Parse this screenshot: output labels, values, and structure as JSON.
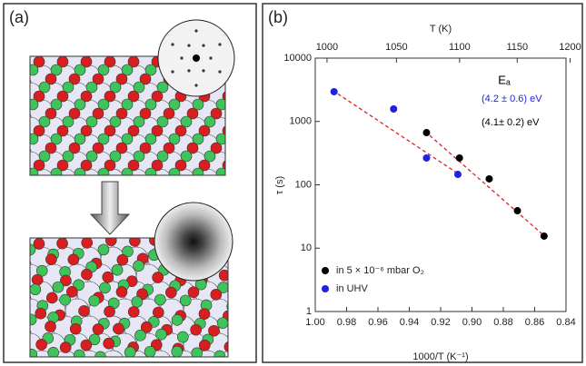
{
  "panel_a": {
    "label": "(a)"
  },
  "chart_data": {
    "type": "scatter",
    "panel_label": "(b)",
    "x_label": "1000/T (K⁻¹)",
    "y_label": "τ (s)",
    "x2_label": "T (K)",
    "xlim": [
      1.0,
      0.84
    ],
    "xticks": [
      {
        "value": 1.0,
        "label": "1.00"
      },
      0.98,
      0.96,
      0.94,
      0.92,
      {
        "value": 0.9,
        "label": "0.90"
      },
      0.88,
      0.86,
      0.84
    ],
    "ylim": [
      1,
      10000
    ],
    "yscale": "log",
    "yticks": [
      1,
      10,
      100,
      1000,
      10000
    ],
    "x2lim": [
      992,
      1196
    ],
    "x2scale": "reciprocal",
    "x2ticks": [
      1000,
      1050,
      1100,
      1150,
      1200
    ],
    "series": [
      {
        "name": "in 5 × 10⁻⁶ mbar O₂",
        "color": "#000000",
        "x": [
          0.929,
          0.908,
          0.889,
          0.871,
          0.854
        ],
        "values": [
          667,
          265,
          124,
          39,
          15.5
        ]
      },
      {
        "name": "in UHV",
        "color": "#1f1fe6",
        "x": [
          0.988,
          0.95,
          0.929,
          0.909
        ],
        "values": [
          2950,
          1575,
          265,
          146
        ]
      }
    ],
    "fit_lines": [
      {
        "color": "#e02020",
        "x": [
          0.93,
          0.853
        ],
        "values": [
          700,
          15
        ]
      },
      {
        "color": "#e02020",
        "x": [
          0.989,
          0.907
        ],
        "values": [
          3100,
          140
        ]
      }
    ],
    "annotations": [
      {
        "text": "Eₐ",
        "color": "#000000"
      },
      {
        "text": "(4.2 ± 0.6) eV",
        "color": "#1f1fe6"
      },
      {
        "text": "(4.1± 0.2) eV",
        "color": "#000000"
      }
    ],
    "legend": "lower left"
  }
}
